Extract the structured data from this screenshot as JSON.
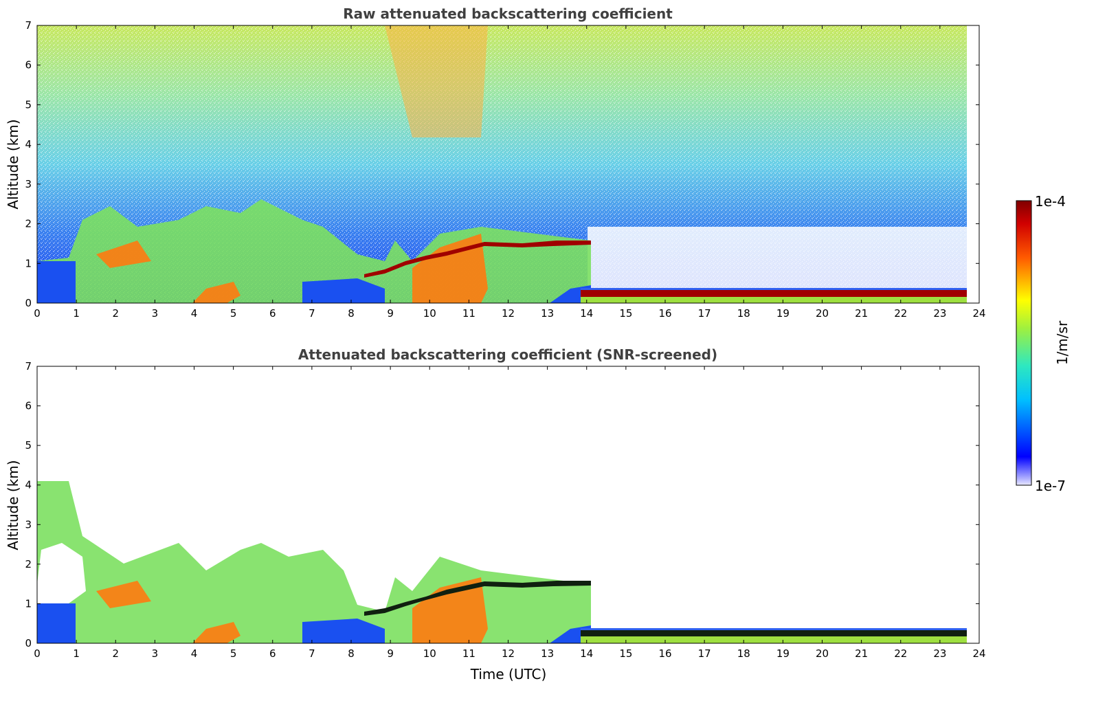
{
  "chart_data": [
    {
      "type": "heatmap",
      "title": "Raw attenuated backscattering coefficient",
      "xlabel": "",
      "ylabel": "Altitude (km)",
      "xlim": [
        0,
        24
      ],
      "ylim": [
        0,
        7
      ],
      "xticks": [
        0,
        1,
        2,
        3,
        4,
        5,
        6,
        7,
        8,
        9,
        10,
        11,
        12,
        13,
        14,
        15,
        16,
        17,
        18,
        19,
        20,
        21,
        22,
        23,
        24
      ],
      "yticks": [
        0,
        1,
        2,
        3,
        4,
        5,
        6,
        7
      ],
      "data_end_time": 23.7,
      "screened": false
    },
    {
      "type": "heatmap",
      "title": "Attenuated backscattering coefficient (SNR-screened)",
      "xlabel": "Time (UTC)",
      "ylabel": "Altitude (km)",
      "xlim": [
        0,
        24
      ],
      "ylim": [
        0,
        7
      ],
      "xticks": [
        0,
        1,
        2,
        3,
        4,
        5,
        6,
        7,
        8,
        9,
        10,
        11,
        12,
        13,
        14,
        15,
        16,
        17,
        18,
        19,
        20,
        21,
        22,
        23,
        24
      ],
      "yticks": [
        0,
        1,
        2,
        3,
        4,
        5,
        6,
        7
      ],
      "data_end_time": 23.7,
      "screened": true
    }
  ],
  "colorbar": {
    "label": "1/m/sr",
    "max_label": "1e-4",
    "min_label": "1e-7",
    "colormap": "jet"
  }
}
